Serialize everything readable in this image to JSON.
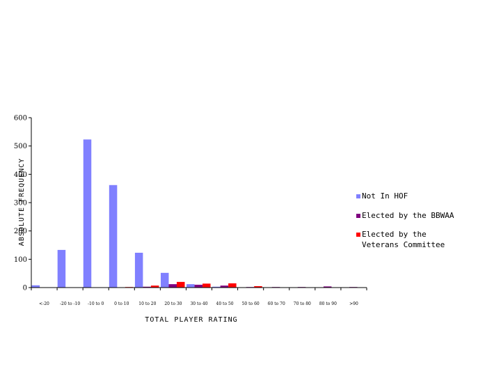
{
  "chart_data": {
    "type": "bar",
    "title": "",
    "xlabel": "TOTAL PLAYER RATING",
    "ylabel": "ABSOLUTE FREQUENCY",
    "ylim": [
      0,
      600
    ],
    "yticks": [
      "0",
      "100",
      "200",
      "300",
      "400",
      "500",
      "600"
    ],
    "categories": [
      "<-20",
      "-20 to -10",
      "-10 to 0",
      "0 to 10",
      "10 to 20",
      "20 to 30",
      "30 to 40",
      "40 to 50",
      "50 to 60",
      "60 to 70",
      "70 to 80",
      "80 to 90",
      ">90"
    ],
    "series": [
      {
        "name": "Not In HOF",
        "color": "#8080ff",
        "values": [
          8,
          133,
          523,
          362,
          123,
          52,
          12,
          3,
          1,
          1,
          0,
          0,
          0
        ]
      },
      {
        "name": "Elected by the BBWAA",
        "color": "#800080",
        "values": [
          0,
          0,
          0,
          0,
          3,
          12,
          10,
          7,
          2,
          2,
          2,
          4,
          2
        ]
      },
      {
        "name": "Elected by the\nVeterans Committee",
        "color": "#ff0000",
        "values": [
          0,
          0,
          0,
          2,
          7,
          20,
          14,
          15,
          5,
          0,
          0,
          0,
          0
        ]
      }
    ],
    "grid": false,
    "legend": "right"
  }
}
